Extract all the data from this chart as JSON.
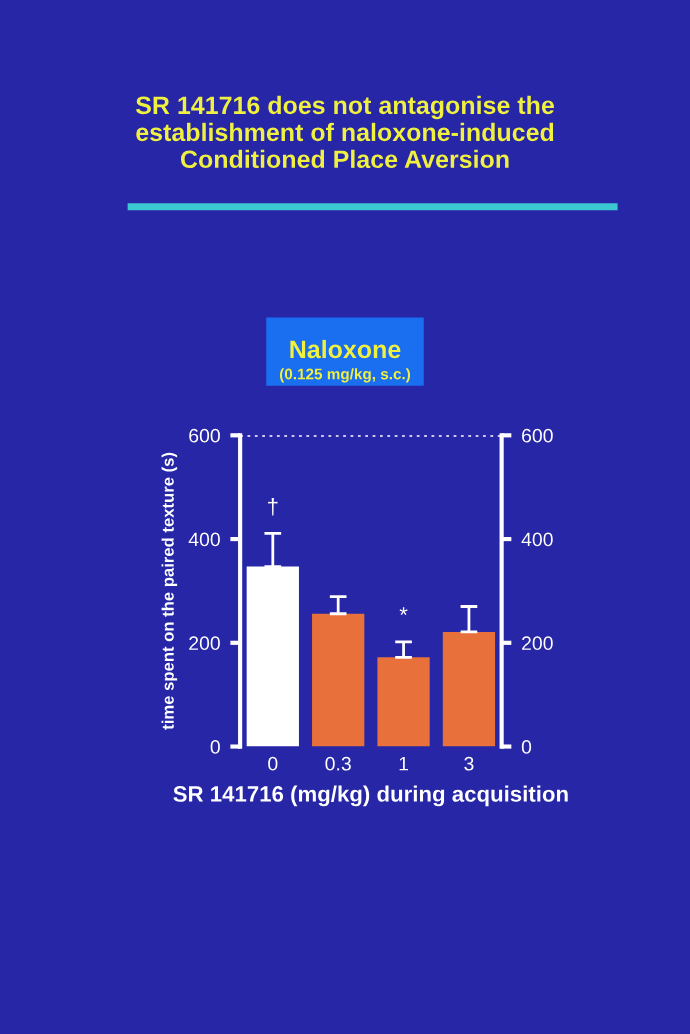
{
  "chart_data": {
    "type": "bar",
    "title": "SR 141716 does not antagonise the\nestablishment of naloxone-induced\nConditioned Place Aversion",
    "subtitle": "Naloxone\n(0.125 mg/kg, s.c.)",
    "categories": [
      "0",
      "0.3",
      "1",
      "3"
    ],
    "values": [
      347,
      256,
      172,
      221
    ],
    "colors": [
      "#ffffff",
      "#e8703a",
      "#e8703a",
      "#e8703a"
    ],
    "errors": [
      [
        347,
        411
      ],
      [
        256,
        289
      ],
      [
        172,
        202
      ],
      [
        221,
        270
      ]
    ],
    "ylabel": "time spent on the paired texture (s)",
    "xlabel": "SR 141716 (mg/kg) during acquisition",
    "ylim": [
      0,
      600
    ],
    "yticks": [
      0,
      200,
      400,
      600
    ],
    "y2lim": [
      0,
      600
    ],
    "y2ticks": [
      0,
      200,
      400,
      600
    ],
    "ref_lines": [
      {
        "axis": "y",
        "value": 600,
        "label": null,
        "color": "#ffffff",
        "line_style": "dotted"
      }
    ],
    "annotations": [
      {
        "text": "†",
        "x": "0",
        "y": 411
      },
      {
        "text": "*",
        "x": "1",
        "y": 202
      }
    ],
    "grid": false,
    "legend": false
  }
}
